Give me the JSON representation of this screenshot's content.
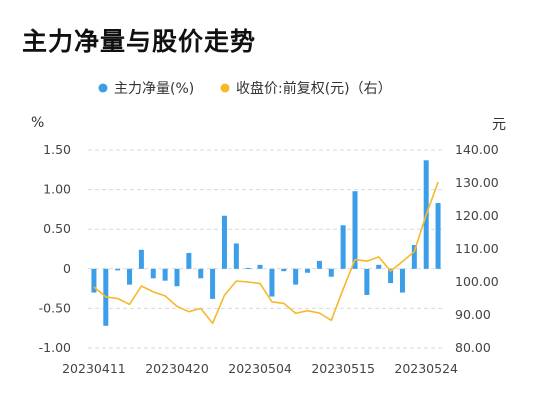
{
  "title": "主力净量与股价走势",
  "chart_data": {
    "type": "bar+line",
    "legend": [
      {
        "label": "主力净量(%)",
        "color": "#3a9ee8"
      },
      {
        "label": "收盘价:前复权(元)（右）",
        "color": "#f7b82a"
      }
    ],
    "left_unit": "%",
    "right_unit": "元",
    "left_ticks": [
      "1.50",
      "1.00",
      "0.50",
      "0",
      "-0.50",
      "-1.00"
    ],
    "right_ticks": [
      "140.00",
      "130.00",
      "120.00",
      "110.00",
      "100.00",
      "90.00",
      "80.00"
    ],
    "left_range": [
      -1.0,
      1.5
    ],
    "right_range": [
      80,
      140
    ],
    "x_labels": [
      "20230411",
      "20230420",
      "20230504",
      "20230515",
      "20230524"
    ],
    "x_label_index": [
      0,
      7,
      14,
      21,
      28
    ],
    "series": [
      {
        "name": "主力净量(%)",
        "type": "bar",
        "axis": "left",
        "values": [
          -0.3,
          -0.72,
          -0.02,
          -0.2,
          0.24,
          -0.12,
          -0.15,
          -0.22,
          0.2,
          -0.12,
          -0.38,
          0.67,
          0.32,
          0.01,
          0.05,
          -0.35,
          -0.03,
          -0.2,
          -0.05,
          0.1,
          -0.1,
          0.55,
          0.98,
          -0.33,
          0.05,
          -0.18,
          -0.3,
          0.3,
          1.37,
          0.83
        ]
      },
      {
        "name": "收盘价:前复权(元)（右）",
        "type": "line",
        "axis": "right",
        "values": [
          98.5,
          95.5,
          95.0,
          93.2,
          98.8,
          97.0,
          95.8,
          92.6,
          91.0,
          92.0,
          87.5,
          96.0,
          100.3,
          100.0,
          99.5,
          94.0,
          93.5,
          90.5,
          91.3,
          90.6,
          88.4,
          97.8,
          106.8,
          106.3,
          107.6,
          103.3,
          106.2,
          109.2,
          120.4,
          130.3
        ]
      }
    ],
    "grid": true
  }
}
